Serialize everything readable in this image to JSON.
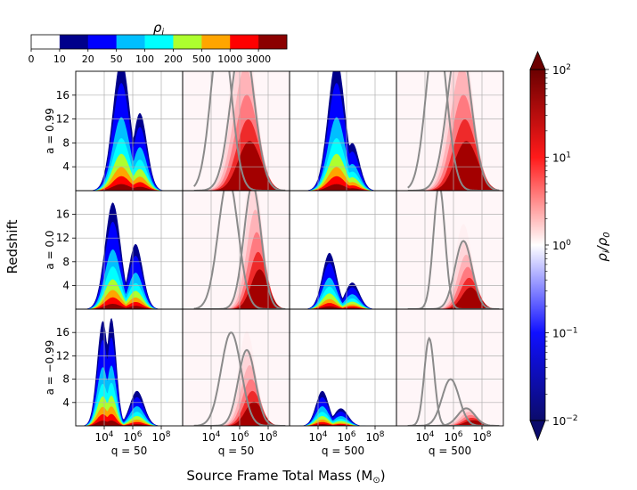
{
  "chart_data": {
    "type": "heatmap",
    "title": "",
    "figure_ylabel": "Redshift",
    "figure_xlabel": "Source Frame Total Mass (M",
    "figure_xlabel_sub": "⊙",
    "figure_xlabel_close": ")",
    "top_colorbar": {
      "label": "ρ",
      "label_sub": "i",
      "boundaries": [
        "0",
        "10",
        "20",
        "50",
        "100",
        "200",
        "500",
        "1000",
        "3000"
      ],
      "colors": [
        "#ffffff",
        "#00008b",
        "#0000ff",
        "#00bfff",
        "#00ffff",
        "#adff2f",
        "#ffa500",
        "#ff0000",
        "#8b0000"
      ]
    },
    "right_colorbar": {
      "label": "ρ",
      "label_sub": "i",
      "label_mid": "/ρ",
      "label_sub2": "0",
      "tick_base": "10",
      "tick_exponents": [
        "2",
        "1",
        "0",
        "−1",
        "−2"
      ],
      "range_log10": [
        -2,
        2
      ],
      "colors": [
        "#0b0b6b",
        "#1010ff",
        "#ffffff",
        "#ff1a1a",
        "#6b0000"
      ]
    },
    "x_axis": {
      "scale": "log10",
      "range_log10": [
        2,
        9.5
      ],
      "tick_base": "10",
      "tick_exponents": [
        "4",
        "6",
        "8"
      ],
      "tick_values_log10": [
        4,
        6,
        8
      ]
    },
    "y_axis": {
      "range": [
        0,
        20
      ],
      "ticks": [
        "4",
        "8",
        "12",
        "16"
      ],
      "tick_values": [
        4,
        8,
        12,
        16
      ]
    },
    "rows": [
      {
        "label": "a = 0.99",
        "spin": 0.99
      },
      {
        "label": "a = 0.0",
        "spin": 0.0
      },
      {
        "label": "a = −0.99",
        "spin": -0.99
      }
    ],
    "columns": [
      {
        "label": "q = 50",
        "q": 50,
        "kind": "density"
      },
      {
        "label": "q = 50",
        "q": 50,
        "kind": "ratio"
      },
      {
        "label": "q = 500",
        "q": 500,
        "kind": "density"
      },
      {
        "label": "q = 500",
        "q": 500,
        "kind": "ratio"
      }
    ],
    "density_panels": [
      {
        "row": 0,
        "col": 0,
        "peaks": [
          {
            "x": 5.2,
            "z": 22,
            "w": 0.6
          },
          {
            "x": 6.5,
            "z": 13,
            "w": 0.5
          }
        ]
      },
      {
        "row": 0,
        "col": 2,
        "peaks": [
          {
            "x": 5.3,
            "z": 22,
            "w": 0.6
          },
          {
            "x": 6.4,
            "z": 8,
            "w": 0.5
          }
        ]
      },
      {
        "row": 1,
        "col": 0,
        "peaks": [
          {
            "x": 4.6,
            "z": 18,
            "w": 0.55
          },
          {
            "x": 6.2,
            "z": 11,
            "w": 0.5
          }
        ]
      },
      {
        "row": 1,
        "col": 2,
        "peaks": [
          {
            "x": 4.8,
            "z": 9.5,
            "w": 0.5
          },
          {
            "x": 6.4,
            "z": 4.5,
            "w": 0.5
          }
        ]
      },
      {
        "row": 2,
        "col": 0,
        "peaks": [
          {
            "x": 3.9,
            "z": 18,
            "w": 0.4
          },
          {
            "x": 4.5,
            "z": 18.5,
            "w": 0.35
          },
          {
            "x": 6.3,
            "z": 6,
            "w": 0.5
          }
        ]
      },
      {
        "row": 2,
        "col": 2,
        "peaks": [
          {
            "x": 4.3,
            "z": 6,
            "w": 0.45
          },
          {
            "x": 5.6,
            "z": 3,
            "w": 0.5
          }
        ]
      }
    ],
    "ratio_panels": [
      {
        "row": 0,
        "col": 1,
        "curves": [
          {
            "x": 4.7,
            "z": 28,
            "w": 0.7
          },
          {
            "x": 6.2,
            "z": 26,
            "w": 0.8
          }
        ]
      },
      {
        "row": 0,
        "col": 3,
        "curves": [
          {
            "x": 4.8,
            "z": 28,
            "w": 0.7
          },
          {
            "x": 6.4,
            "z": 26,
            "w": 0.8
          }
        ]
      },
      {
        "row": 1,
        "col": 1,
        "curves": [
          {
            "x": 5.2,
            "z": 22,
            "w": 0.7
          },
          {
            "x": 6.9,
            "z": 21,
            "w": 0.6
          }
        ]
      },
      {
        "row": 1,
        "col": 3,
        "curves": [
          {
            "x": 5.0,
            "z": 21,
            "w": 0.4
          },
          {
            "x": 6.7,
            "z": 11.5,
            "w": 0.6
          }
        ]
      },
      {
        "row": 2,
        "col": 1,
        "curves": [
          {
            "x": 5.4,
            "z": 16,
            "w": 0.7
          },
          {
            "x": 6.5,
            "z": 13,
            "w": 0.6
          }
        ]
      },
      {
        "row": 2,
        "col": 3,
        "curves": [
          {
            "x": 4.3,
            "z": 15,
            "w": 0.35
          },
          {
            "x": 5.8,
            "z": 8,
            "w": 0.6
          },
          {
            "x": 6.9,
            "z": 3,
            "w": 0.6
          }
        ]
      }
    ]
  }
}
